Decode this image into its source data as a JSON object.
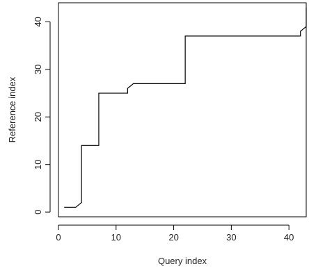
{
  "chart_data": {
    "type": "line",
    "title": "",
    "xlabel": "Query index",
    "ylabel": "Reference index",
    "xlim": [
      0,
      43
    ],
    "ylim": [
      -1,
      44
    ],
    "xticks": [
      0,
      10,
      20,
      30,
      40
    ],
    "yticks": [
      0,
      10,
      20,
      30,
      40
    ],
    "grid": false,
    "legend": "none",
    "line_color": "#000000",
    "series": [
      {
        "x": [
          1,
          3,
          4,
          4,
          7,
          7,
          12,
          12,
          13,
          22,
          22,
          42,
          42,
          43,
          43
        ],
        "y": [
          1,
          1,
          2,
          14,
          14,
          25,
          25,
          26,
          27,
          27,
          37,
          37,
          38,
          39,
          43
        ]
      }
    ]
  }
}
